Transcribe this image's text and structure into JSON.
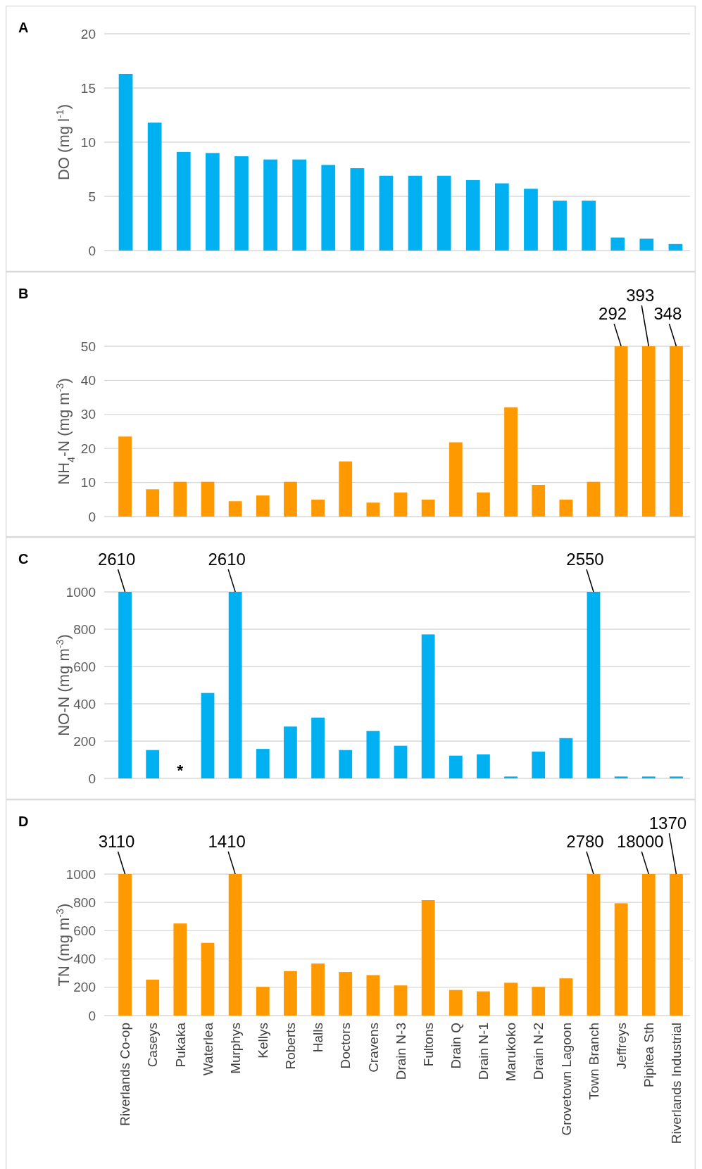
{
  "chart_data": [
    {
      "type": "bar",
      "title": "A",
      "ylabel": "DO (mg l$^{-1}$)",
      "categories": [
        null,
        null,
        null,
        null,
        null,
        null,
        null,
        null,
        null,
        null,
        null,
        null,
        null,
        null,
        null,
        null,
        null,
        null,
        null,
        null
      ],
      "values": [
        16.3,
        11.8,
        9.1,
        9.0,
        8.7,
        8.4,
        8.4,
        7.9,
        7.6,
        6.9,
        6.9,
        6.9,
        6.5,
        6.2,
        5.7,
        4.6,
        4.6,
        1.2,
        1.1,
        0.6
      ],
      "color": "#00b0f0",
      "ylim": [
        0,
        20
      ],
      "yticks": [
        0,
        5,
        10,
        15,
        20
      ],
      "grid": "y",
      "tick_labels": "y"
    },
    {
      "type": "bar",
      "title": "B",
      "ylabel": "NH$_{4}$-N (mg m$^{-3}$)",
      "categories": [
        "Riverlands Co-op",
        "Caseys",
        "Pukaka",
        "Waterlea",
        "Murphys",
        "Kellys",
        "Roberts",
        "Halls",
        "Doctors",
        "Cravens",
        "Drain N-3",
        "Fultons",
        "Drain Q",
        "Drain N-1",
        "Marukoko",
        "Drain N-2",
        "Grovetown Lagoon",
        "Town Branch",
        "Jeffreys",
        "Pipitea Sth",
        "Riverlands Industrial"
      ],
      "values": [
        23.5,
        8,
        10.2,
        10.2,
        4.5,
        6.2,
        10.2,
        5,
        16.2,
        4.1,
        7.1,
        5,
        21.8,
        7.1,
        32.1,
        9.3,
        5,
        10.2,
        50,
        50,
        50
      ],
      "color": "#ff9900",
      "ylim": [
        0,
        50
      ],
      "yticks": [
        0,
        10,
        20,
        30,
        40,
        50
      ],
      "grid": "y",
      "tick_labels": "y",
      "annotations": [
        {
          "text": "292",
          "x": "Jeffreys",
          "y": 50
        },
        {
          "text": "393",
          "x": "Pipitea Sth",
          "y": 50
        },
        {
          "text": "348",
          "x": "Riverlands Industrial",
          "y": 50
        }
      ]
    },
    {
      "type": "bar",
      "title": "C",
      "ylabel": "NO-N (mg m$^{-3}$)",
      "categories": [
        "Riverlands Co-op",
        "Caseys",
        "Pukaka",
        "Waterlea",
        "Murphys",
        "Kellys",
        "Roberts",
        "Halls",
        "Doctors",
        "Cravens",
        "Drain N-3",
        "Fultons",
        "Drain Q",
        "Drain N-1",
        "Marukoko",
        "Drain N-2",
        "Grovetown Lagoon",
        "Town Branch",
        "Jeffreys",
        "Pipitea Sth",
        "Riverlands Industrial"
      ],
      "values": [
        1000,
        152,
        null,
        458,
        1000,
        158,
        278,
        326,
        152,
        254,
        175,
        772,
        122,
        129,
        10,
        144,
        216,
        1000,
        10,
        10,
        10
      ],
      "color": "#00b0f0",
      "ylim": [
        0,
        1000
      ],
      "yticks": [
        0,
        200,
        400,
        600,
        800,
        1000
      ],
      "grid": "y",
      "tick_labels": "y",
      "annotations": [
        {
          "text": "2610",
          "x": "Riverlands Co-op",
          "y": 1000
        },
        {
          "text": "2610",
          "x": "Murphys",
          "y": 1000
        },
        {
          "text": "2550",
          "x": "Town Branch",
          "y": 1000
        },
        "*"
      ]
    },
    {
      "type": "bar",
      "title": "D",
      "ylabel": "TN (mg m$^{-3}$)",
      "categories": [
        "Riverlands Co-op",
        "Caseys",
        "Pukaka",
        "Waterlea",
        "Murphys",
        "Kellys",
        "Roberts",
        "Halls",
        "Doctors",
        "Cravens",
        "Drain N-3",
        "Fultons",
        "Drain Q",
        "Drain N-1",
        "Marukoko",
        "Drain N-2",
        "Grovetown Lagoon",
        "Town Branch",
        "Jeffreys",
        "Pipitea Sth",
        "Riverlands Industrial"
      ],
      "values": [
        1000,
        254,
        651,
        514,
        1000,
        203,
        314,
        368,
        308,
        286,
        213,
        816,
        181,
        171,
        232,
        203,
        263,
        1000,
        794,
        1000,
        1000
      ],
      "color": "#ff9900",
      "ylim": [
        0,
        1000
      ],
      "yticks": [
        0,
        200,
        400,
        600,
        800,
        1000
      ],
      "grid": "y",
      "annotations": [
        {
          "text": "3110",
          "x": "Riverlands Co-op",
          "y": 1000
        },
        {
          "text": "1410",
          "x": "Murphys",
          "y": 1000
        },
        {
          "text": "2780",
          "x": "Town Branch",
          "y": 1000
        },
        {
          "text": "18000",
          "x": "Pipitea Sth",
          "y": 1000
        },
        {
          "text": "1370",
          "x": "Riverlands Industrial",
          "y": 1000
        }
      ]
    }
  ]
}
